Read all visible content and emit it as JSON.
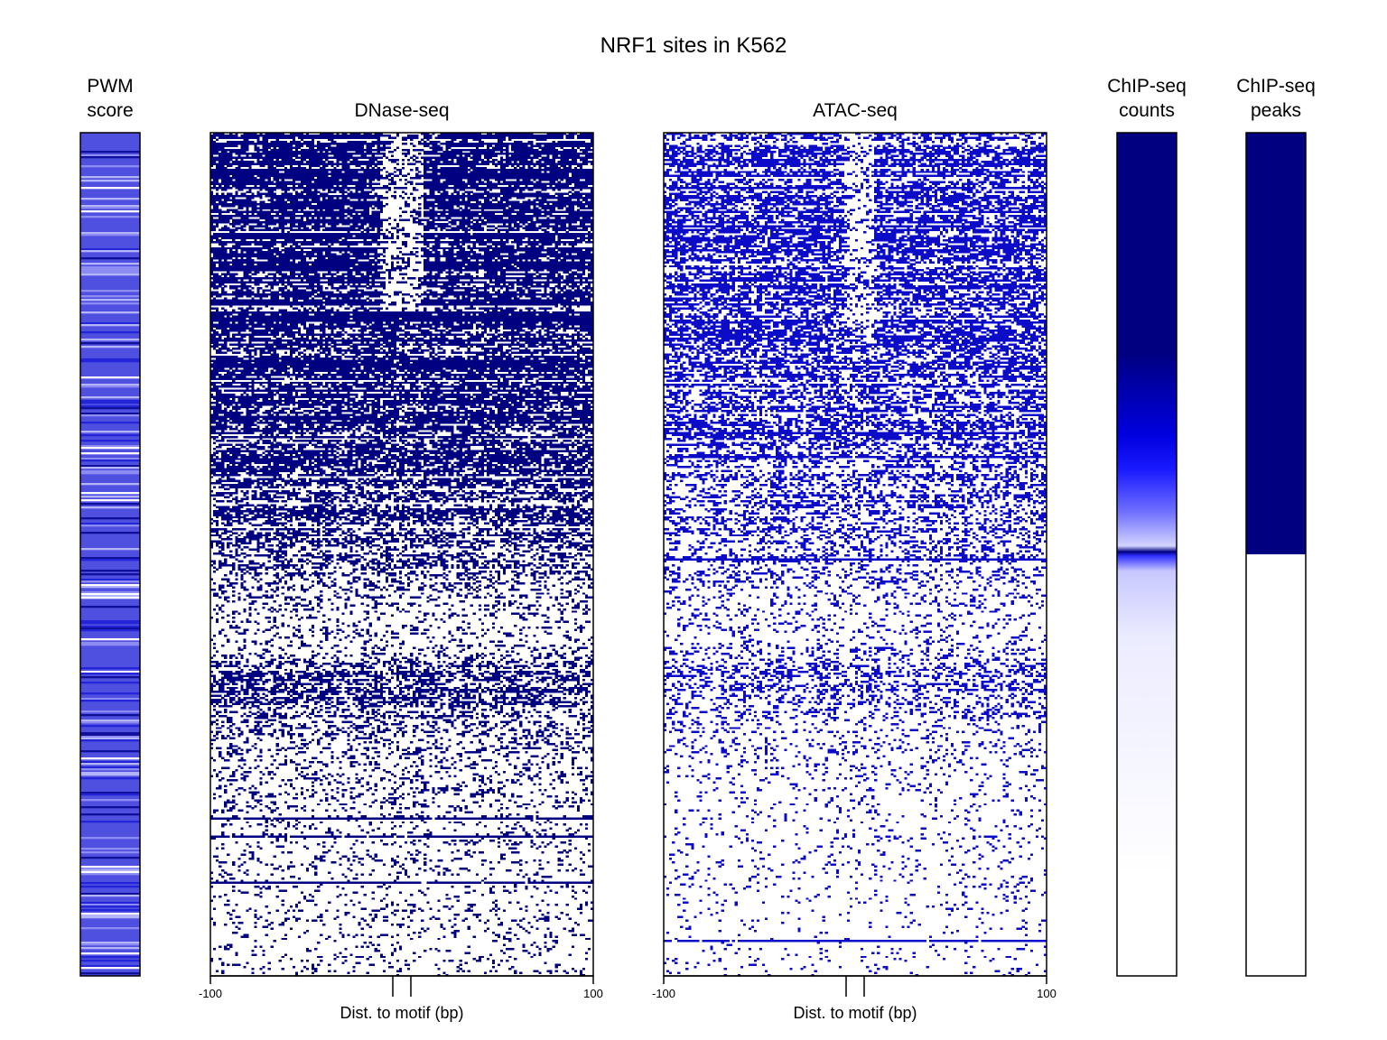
{
  "chart_data": {
    "type": "heatmap",
    "title": "NRF1 sites in K562",
    "colors": {
      "high": "#000080",
      "mid": "#0000ff",
      "low": "#ffffff",
      "pwm_base": "#5050e0",
      "frame": "#000000"
    },
    "panels": [
      {
        "id": "pwm",
        "title_lines": [
          "PWM",
          "score"
        ],
        "kind": "row-stripes",
        "description_values": "per-site motif score, rows sorted by ChIP-seq; medium-blue stripes with scattered lighter/darker rows"
      },
      {
        "id": "dnase",
        "title_lines": [
          "DNase-seq"
        ],
        "kind": "sparse-heatmap",
        "x_label": "Dist. to motif (bp)",
        "x_range": [
          -100,
          100
        ],
        "x_ticks": [
          -100,
          100
        ],
        "x_tick_labels": [
          "-100",
          "100"
        ],
        "motif_marks": [
          -5,
          5
        ],
        "density_profile": [
          [
            0.0,
            0.82
          ],
          [
            0.2,
            0.8
          ],
          [
            0.28,
            0.7
          ],
          [
            0.4,
            0.56
          ],
          [
            0.5,
            0.42
          ],
          [
            0.53,
            0.28
          ],
          [
            0.57,
            0.17
          ],
          [
            0.6,
            0.16
          ],
          [
            0.62,
            0.22
          ],
          [
            0.64,
            0.45
          ],
          [
            0.66,
            0.48
          ],
          [
            0.7,
            0.25
          ],
          [
            0.8,
            0.14
          ],
          [
            1.0,
            0.09
          ]
        ],
        "center_footprint": {
          "x_range": [
            -12,
            12
          ],
          "row_range": [
            0.0,
            0.21
          ],
          "density_factor": 0.35
        }
      },
      {
        "id": "atac",
        "title_lines": [
          "ATAC-seq"
        ],
        "kind": "sparse-heatmap",
        "x_label": "Dist. to motif (bp)",
        "x_range": [
          -100,
          100
        ],
        "x_ticks": [
          -100,
          100
        ],
        "x_tick_labels": [
          "-100",
          "100"
        ],
        "motif_marks": [
          -5,
          5
        ],
        "density_profile": [
          [
            0.0,
            0.6
          ],
          [
            0.2,
            0.55
          ],
          [
            0.3,
            0.46
          ],
          [
            0.4,
            0.36
          ],
          [
            0.5,
            0.26
          ],
          [
            0.55,
            0.16
          ],
          [
            0.6,
            0.12
          ],
          [
            0.62,
            0.16
          ],
          [
            0.64,
            0.32
          ],
          [
            0.66,
            0.3
          ],
          [
            0.7,
            0.14
          ],
          [
            0.8,
            0.07
          ],
          [
            1.0,
            0.04
          ]
        ],
        "center_footprint": {
          "x_range": [
            -6,
            10
          ],
          "row_range": [
            0.0,
            0.25
          ],
          "density_factor": 0.45
        }
      },
      {
        "id": "chip_counts",
        "title_lines": [
          "ChIP-seq",
          "counts"
        ],
        "kind": "gradient",
        "color_stops": [
          {
            "row": 0.0,
            "color": "#000080"
          },
          {
            "row": 0.26,
            "color": "#000080"
          },
          {
            "row": 0.36,
            "color": "#0000e0"
          },
          {
            "row": 0.4,
            "color": "#1a1aff"
          },
          {
            "row": 0.45,
            "color": "#7070ff"
          },
          {
            "row": 0.49,
            "color": "#d4d4ff"
          },
          {
            "row": 0.497,
            "color": "#000080"
          },
          {
            "row": 0.502,
            "color": "#3030ff"
          },
          {
            "row": 0.52,
            "color": "#c8c8ff"
          },
          {
            "row": 0.6,
            "color": "#ececff"
          },
          {
            "row": 0.75,
            "color": "#f6f6ff"
          },
          {
            "row": 0.88,
            "color": "#ffffff"
          },
          {
            "row": 1.0,
            "color": "#ffffff"
          }
        ]
      },
      {
        "id": "chip_peaks",
        "title_lines": [
          "ChIP-seq",
          "peaks"
        ],
        "kind": "binary",
        "positive_fraction": 0.5,
        "positive_color": "#000080",
        "negative_color": "#ffffff"
      }
    ]
  }
}
